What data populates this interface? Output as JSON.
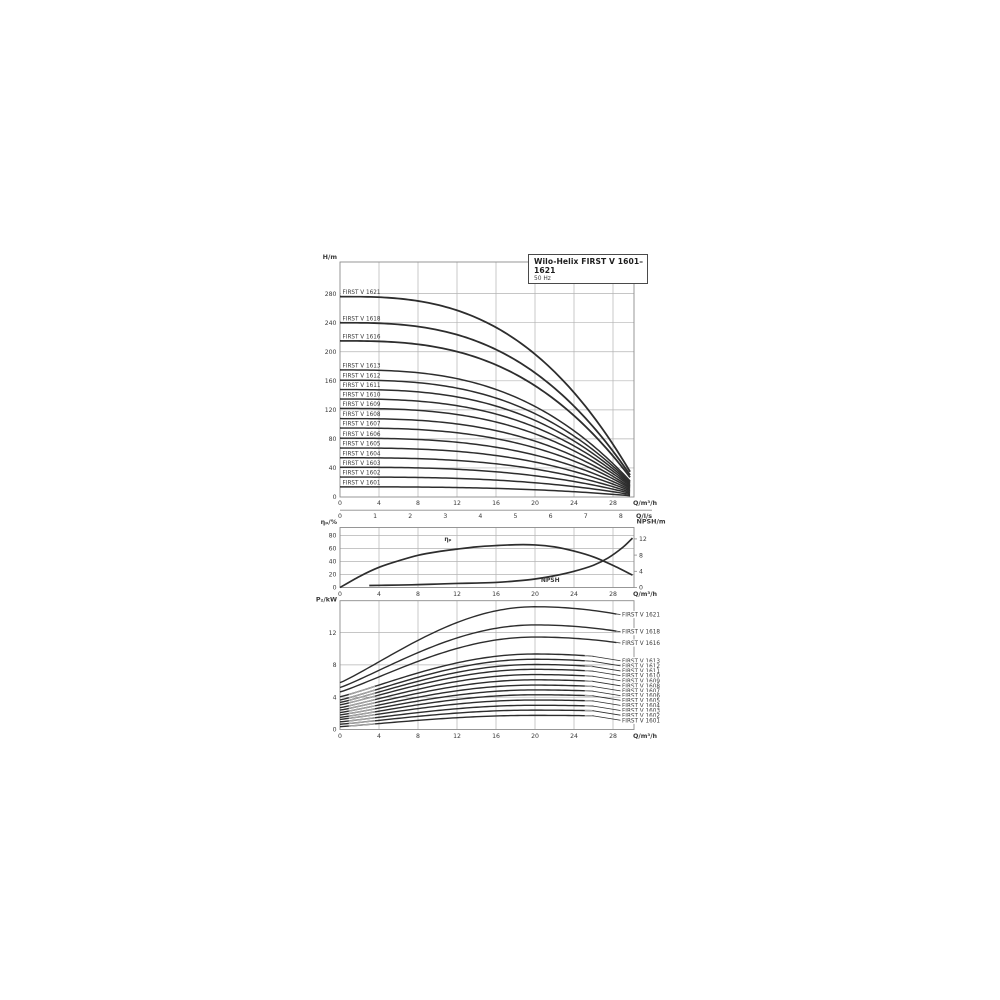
{
  "title_box": {
    "title": "Wilo-Helix FIRST V 1601–1621",
    "subtitle": "50 Hz"
  },
  "colors": {
    "curve": "#2d2d2d",
    "curve_muted": "#a6a6a6",
    "grid": "#b3b3b3",
    "border": "#8c8c8c",
    "text": "#3a3a3a",
    "label_bg": "#ffffff"
  },
  "chart_data": [
    {
      "type": "line",
      "id": "head-chart",
      "title": "Wilo-Helix FIRST V 1601–1621",
      "subtitle": "50 Hz",
      "ylabel": "H/m",
      "xlabel": "Q/m³/h",
      "xlabel_secondary": "Q/l/s",
      "xlim": [
        0,
        30.15
      ],
      "ylim": [
        0,
        323
      ],
      "xticks": [
        0,
        4,
        8,
        12,
        16,
        20,
        24,
        28
      ],
      "xticks_secondary": [
        0,
        1,
        2,
        3,
        4,
        5,
        6,
        7,
        8
      ],
      "yticks": [
        0,
        40,
        80,
        120,
        160,
        200,
        240,
        280
      ],
      "grid": true,
      "legend_position": "curve-start-labels-left",
      "curve_model": {
        "droop_frac": 0.92,
        "exp": 2.8,
        "q_zero_head": 30.3,
        "q_end": 29.9
      },
      "series": [
        {
          "label": "FIRST V 1621",
          "shutoff_head_m": 276
        },
        {
          "label": "FIRST V 1618",
          "shutoff_head_m": 240
        },
        {
          "label": "FIRST V 1616",
          "shutoff_head_m": 215
        },
        {
          "label": "FIRST V 1613",
          "shutoff_head_m": 175
        },
        {
          "label": "FIRST V 1612",
          "shutoff_head_m": 161
        },
        {
          "label": "FIRST V 1611",
          "shutoff_head_m": 148
        },
        {
          "label": "FIRST V 1610",
          "shutoff_head_m": 135
        },
        {
          "label": "FIRST V 1609",
          "shutoff_head_m": 122
        },
        {
          "label": "FIRST V 1608",
          "shutoff_head_m": 108
        },
        {
          "label": "FIRST V 1607",
          "shutoff_head_m": 95
        },
        {
          "label": "FIRST V 1606",
          "shutoff_head_m": 81
        },
        {
          "label": "FIRST V 1605",
          "shutoff_head_m": 67.5
        },
        {
          "label": "FIRST V 1604",
          "shutoff_head_m": 54
        },
        {
          "label": "FIRST V 1603",
          "shutoff_head_m": 41
        },
        {
          "label": "FIRST V 1602",
          "shutoff_head_m": 27.5
        },
        {
          "label": "FIRST V 1601",
          "shutoff_head_m": 14
        }
      ]
    },
    {
      "type": "line",
      "id": "efficiency-npsh-chart",
      "ylabel": "ηₚ/%",
      "ylabel_right": "NPSH/m",
      "xlabel": "Q/m³/h",
      "xlim": [
        0,
        30.15
      ],
      "ylim_left": [
        0,
        92
      ],
      "ylim_right": [
        0,
        14.8
      ],
      "xticks": [
        0,
        4,
        8,
        12,
        16,
        20,
        24,
        28
      ],
      "yticks_left": [
        0,
        20,
        40,
        60,
        80
      ],
      "yticks_right": [
        0,
        4,
        8,
        12
      ],
      "grid": true,
      "series": [
        {
          "label": "ηₚ",
          "axis": "left",
          "points": [
            [
              0,
              0
            ],
            [
              2,
              17
            ],
            [
              4,
              31
            ],
            [
              6,
              41
            ],
            [
              8,
              49.5
            ],
            [
              10,
              55
            ],
            [
              12,
              59
            ],
            [
              14,
              62.5
            ],
            [
              16,
              64.5
            ],
            [
              18,
              65.8
            ],
            [
              20,
              65.5
            ],
            [
              22,
              62.5
            ],
            [
              24,
              56
            ],
            [
              26,
              47
            ],
            [
              28,
              34
            ],
            [
              30,
              19
            ]
          ],
          "label_at": {
            "q": 10.7,
            "v": 69
          }
        },
        {
          "label": "NPSH",
          "axis": "right",
          "points": [
            [
              3,
              0.5
            ],
            [
              6,
              0.6
            ],
            [
              8,
              0.7
            ],
            [
              10,
              0.85
            ],
            [
              12,
              1.0
            ],
            [
              14,
              1.1
            ],
            [
              16,
              1.25
            ],
            [
              18,
              1.6
            ],
            [
              20,
              2.1
            ],
            [
              22,
              2.9
            ],
            [
              24,
              4.0
            ],
            [
              26,
              5.5
            ],
            [
              27.5,
              7.3
            ],
            [
              29,
              9.9
            ],
            [
              30,
              12.2
            ]
          ],
          "label_at": {
            "q": 20.6,
            "v": 1.0
          }
        }
      ]
    },
    {
      "type": "line",
      "id": "power-chart",
      "ylabel": "P₂/kW",
      "xlabel": "Q/m³/h",
      "xlim": [
        0,
        30.15
      ],
      "ylim": [
        0,
        16
      ],
      "xticks": [
        0,
        4,
        8,
        12,
        16,
        20,
        24,
        28
      ],
      "yticks": [
        0,
        4,
        8,
        12
      ],
      "grid": true,
      "legend_position": "curve-end-labels-right",
      "curve_model": {
        "q_peak": 20,
        "rise_exp": 1.1,
        "drop_frac": 0.085,
        "muted_start_q": [
          0.9,
          3.6
        ],
        "muted_end_q": 1.0
      },
      "series": [
        {
          "label": "FIRST V 1621",
          "p0_kw": 5.8,
          "ppeak_kw": 15.2,
          "q_end": 28.6
        },
        {
          "label": "FIRST V 1618",
          "p0_kw": 5.2,
          "ppeak_kw": 12.95,
          "q_end": 28.6
        },
        {
          "label": "FIRST V 1616",
          "p0_kw": 4.65,
          "ppeak_kw": 11.45,
          "q_end": 28.6
        },
        {
          "label": "FIRST V 1613",
          "p0_kw": 4.05,
          "ppeak_kw": 9.35,
          "q_end": 26.1
        },
        {
          "label": "FIRST V 1612",
          "p0_kw": 3.65,
          "ppeak_kw": 8.7,
          "q_end": 26.1
        },
        {
          "label": "FIRST V 1611",
          "p0_kw": 3.35,
          "ppeak_kw": 8.05,
          "q_end": 26.1
        },
        {
          "label": "FIRST V 1610",
          "p0_kw": 3.05,
          "ppeak_kw": 7.45,
          "q_end": 26.1
        },
        {
          "label": "FIRST V 1609",
          "p0_kw": 2.7,
          "ppeak_kw": 6.8,
          "q_end": 26.1
        },
        {
          "label": "FIRST V 1608",
          "p0_kw": 2.4,
          "ppeak_kw": 6.15,
          "q_end": 26.1
        },
        {
          "label": "FIRST V 1607",
          "p0_kw": 2.1,
          "ppeak_kw": 5.5,
          "q_end": 26.1
        },
        {
          "label": "FIRST V 1606",
          "p0_kw": 1.8,
          "ppeak_kw": 4.9,
          "q_end": 26.1
        },
        {
          "label": "FIRST V 1605",
          "p0_kw": 1.5,
          "ppeak_kw": 4.3,
          "q_end": 26.1
        },
        {
          "label": "FIRST V 1604",
          "p0_kw": 1.25,
          "ppeak_kw": 3.65,
          "q_end": 26.1
        },
        {
          "label": "FIRST V 1603",
          "p0_kw": 0.95,
          "ppeak_kw": 3.0,
          "q_end": 26.1
        },
        {
          "label": "FIRST V 1602",
          "p0_kw": 0.65,
          "ppeak_kw": 2.4,
          "q_end": 26.1
        },
        {
          "label": "FIRST V 1601",
          "p0_kw": 0.35,
          "ppeak_kw": 1.75,
          "q_end": 26.1
        }
      ]
    }
  ]
}
